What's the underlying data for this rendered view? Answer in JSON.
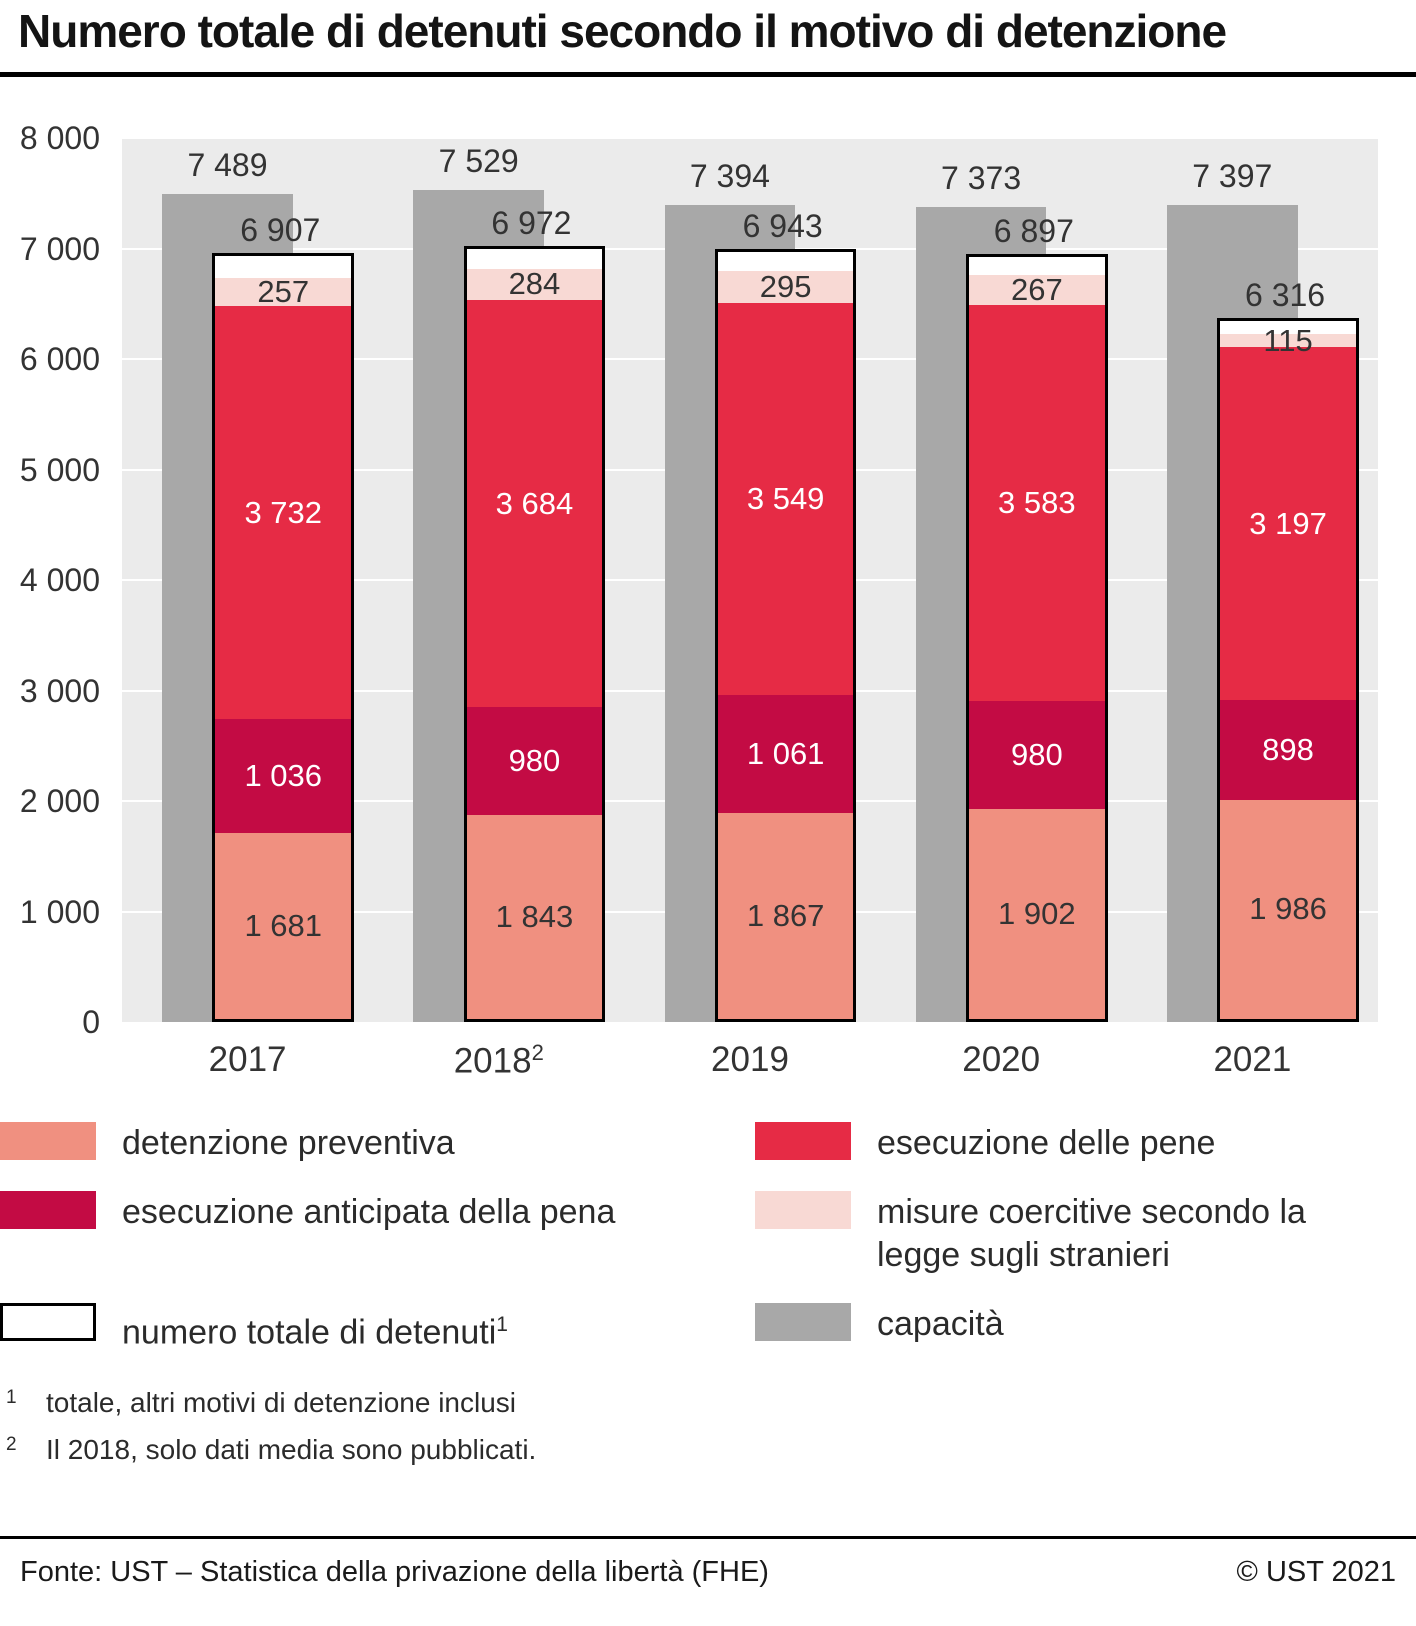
{
  "title": "Numero totale di detenuti secondo il motivo di detenzione",
  "chart_data": {
    "type": "bar",
    "stacked": true,
    "title": "Numero totale di detenuti secondo il motivo di detenzione",
    "xlabel": "",
    "ylabel": "",
    "ylim": [
      0,
      8000
    ],
    "grid": true,
    "legend_position": "bottom",
    "plot_background": "#ebebeb",
    "gridline_color": "#ffffff",
    "categories": [
      {
        "label": "2017",
        "sup": ""
      },
      {
        "label": "2018",
        "sup": "2"
      },
      {
        "label": "2019",
        "sup": ""
      },
      {
        "label": "2020",
        "sup": ""
      },
      {
        "label": "2021",
        "sup": ""
      }
    ],
    "series": [
      {
        "name": "detenzione preventiva",
        "color": "#f09080",
        "text_color": "#333333",
        "values": [
          1681,
          1843,
          1867,
          1902,
          1986
        ]
      },
      {
        "name": "esecuzione anticipata della pena",
        "color": "#c30b44",
        "text_color": "#ffffff",
        "values": [
          1036,
          980,
          1061,
          980,
          898
        ]
      },
      {
        "name": "esecuzione delle pene",
        "color": "#e62b45",
        "text_color": "#ffffff",
        "values": [
          3732,
          3684,
          3549,
          3583,
          3197
        ]
      },
      {
        "name": "misure coercitive secondo la legge sugli stranieri",
        "color": "#f8d9d4",
        "text_color": "#333333",
        "values": [
          257,
          284,
          295,
          267,
          115
        ]
      }
    ],
    "totals": {
      "name": "numero totale di detenuti",
      "sup": "1",
      "values": [
        6907,
        6972,
        6943,
        6897,
        6316
      ]
    },
    "capacity": {
      "name": "capacità",
      "color": "#a8a8a8",
      "values": [
        7489,
        7529,
        7394,
        7373,
        7397
      ]
    },
    "yticks": [
      {
        "value": 8000,
        "label": "8 000"
      },
      {
        "value": 7000,
        "label": "7 000"
      },
      {
        "value": 6000,
        "label": "6 000"
      },
      {
        "value": 5000,
        "label": "5 000"
      },
      {
        "value": 4000,
        "label": "4 000"
      },
      {
        "value": 3000,
        "label": "3 000"
      },
      {
        "value": 2000,
        "label": "2 000"
      },
      {
        "value": 1000,
        "label": "1 000"
      },
      {
        "value": 0,
        "label": "0"
      }
    ]
  },
  "legend": [
    {
      "label": "detenzione preventiva",
      "sup": "",
      "swatch_color": "#f09080",
      "swatch_style": "fill"
    },
    {
      "label": "esecuzione delle pene",
      "sup": "",
      "swatch_color": "#e62b45",
      "swatch_style": "fill"
    },
    {
      "label": "esecuzione anticipata della pena",
      "sup": "",
      "swatch_color": "#c30b44",
      "swatch_style": "fill"
    },
    {
      "label": "misure coercitive secondo la legge sugli stranieri",
      "sup": "",
      "swatch_color": "#f8d9d4",
      "swatch_style": "fill"
    },
    {
      "label": "numero totale di detenuti",
      "sup": "1",
      "swatch_color": "#ffffff",
      "swatch_style": "outline"
    },
    {
      "label": "capacità",
      "sup": "",
      "swatch_color": "#a8a8a8",
      "swatch_style": "fill"
    }
  ],
  "footnotes": [
    {
      "sup": "1",
      "text": "totale, altri motivi di detenzione inclusi"
    },
    {
      "sup": "2",
      "text": "Il 2018, solo dati media sono pubblicati."
    }
  ],
  "footer": {
    "source": "Fonte: UST – Statistica della privazione della libertà (FHE)",
    "copyright": "© UST 2021"
  }
}
